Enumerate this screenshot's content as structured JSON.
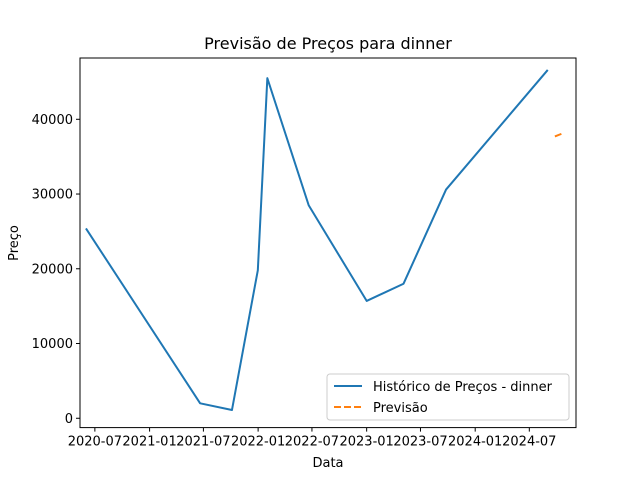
{
  "chart_data": {
    "type": "line",
    "title": "Previsão de Preços para dinner",
    "xlabel": "Data",
    "ylabel": "Preço",
    "x_ticks": [
      "2020-07",
      "2021-01",
      "2021-07",
      "2022-01",
      "2022-07",
      "2023-01",
      "2023-07",
      "2024-01",
      "2024-07"
    ],
    "y_ticks": [
      0,
      10000,
      20000,
      30000,
      40000
    ],
    "xlim": [
      "2020-05-12",
      "2024-12-05"
    ],
    "ylim": [
      -1250,
      48200
    ],
    "grid": false,
    "legend_position": "bottom-right",
    "colors": {
      "historico": "#1f77b4",
      "previsao": "#ff7f0e"
    },
    "series": [
      {
        "name": "Histórico de Preços - dinner",
        "style": "solid",
        "points": [
          {
            "x": "2020-06-01",
            "y": 25400
          },
          {
            "x": "2021-06-20",
            "y": 2000
          },
          {
            "x": "2021-10-05",
            "y": 1100
          },
          {
            "x": "2021-12-31",
            "y": 19800
          },
          {
            "x": "2022-02-01",
            "y": 45500
          },
          {
            "x": "2022-06-20",
            "y": 28500
          },
          {
            "x": "2023-01-01",
            "y": 15700
          },
          {
            "x": "2023-05-05",
            "y": 18000
          },
          {
            "x": "2023-09-25",
            "y": 30600
          },
          {
            "x": "2024-09-01",
            "y": 46600
          }
        ]
      },
      {
        "name": "Previsão",
        "style": "dashed",
        "points": [
          {
            "x": "2024-09-25",
            "y": 37700
          },
          {
            "x": "2024-10-20",
            "y": 38100
          }
        ]
      }
    ]
  }
}
